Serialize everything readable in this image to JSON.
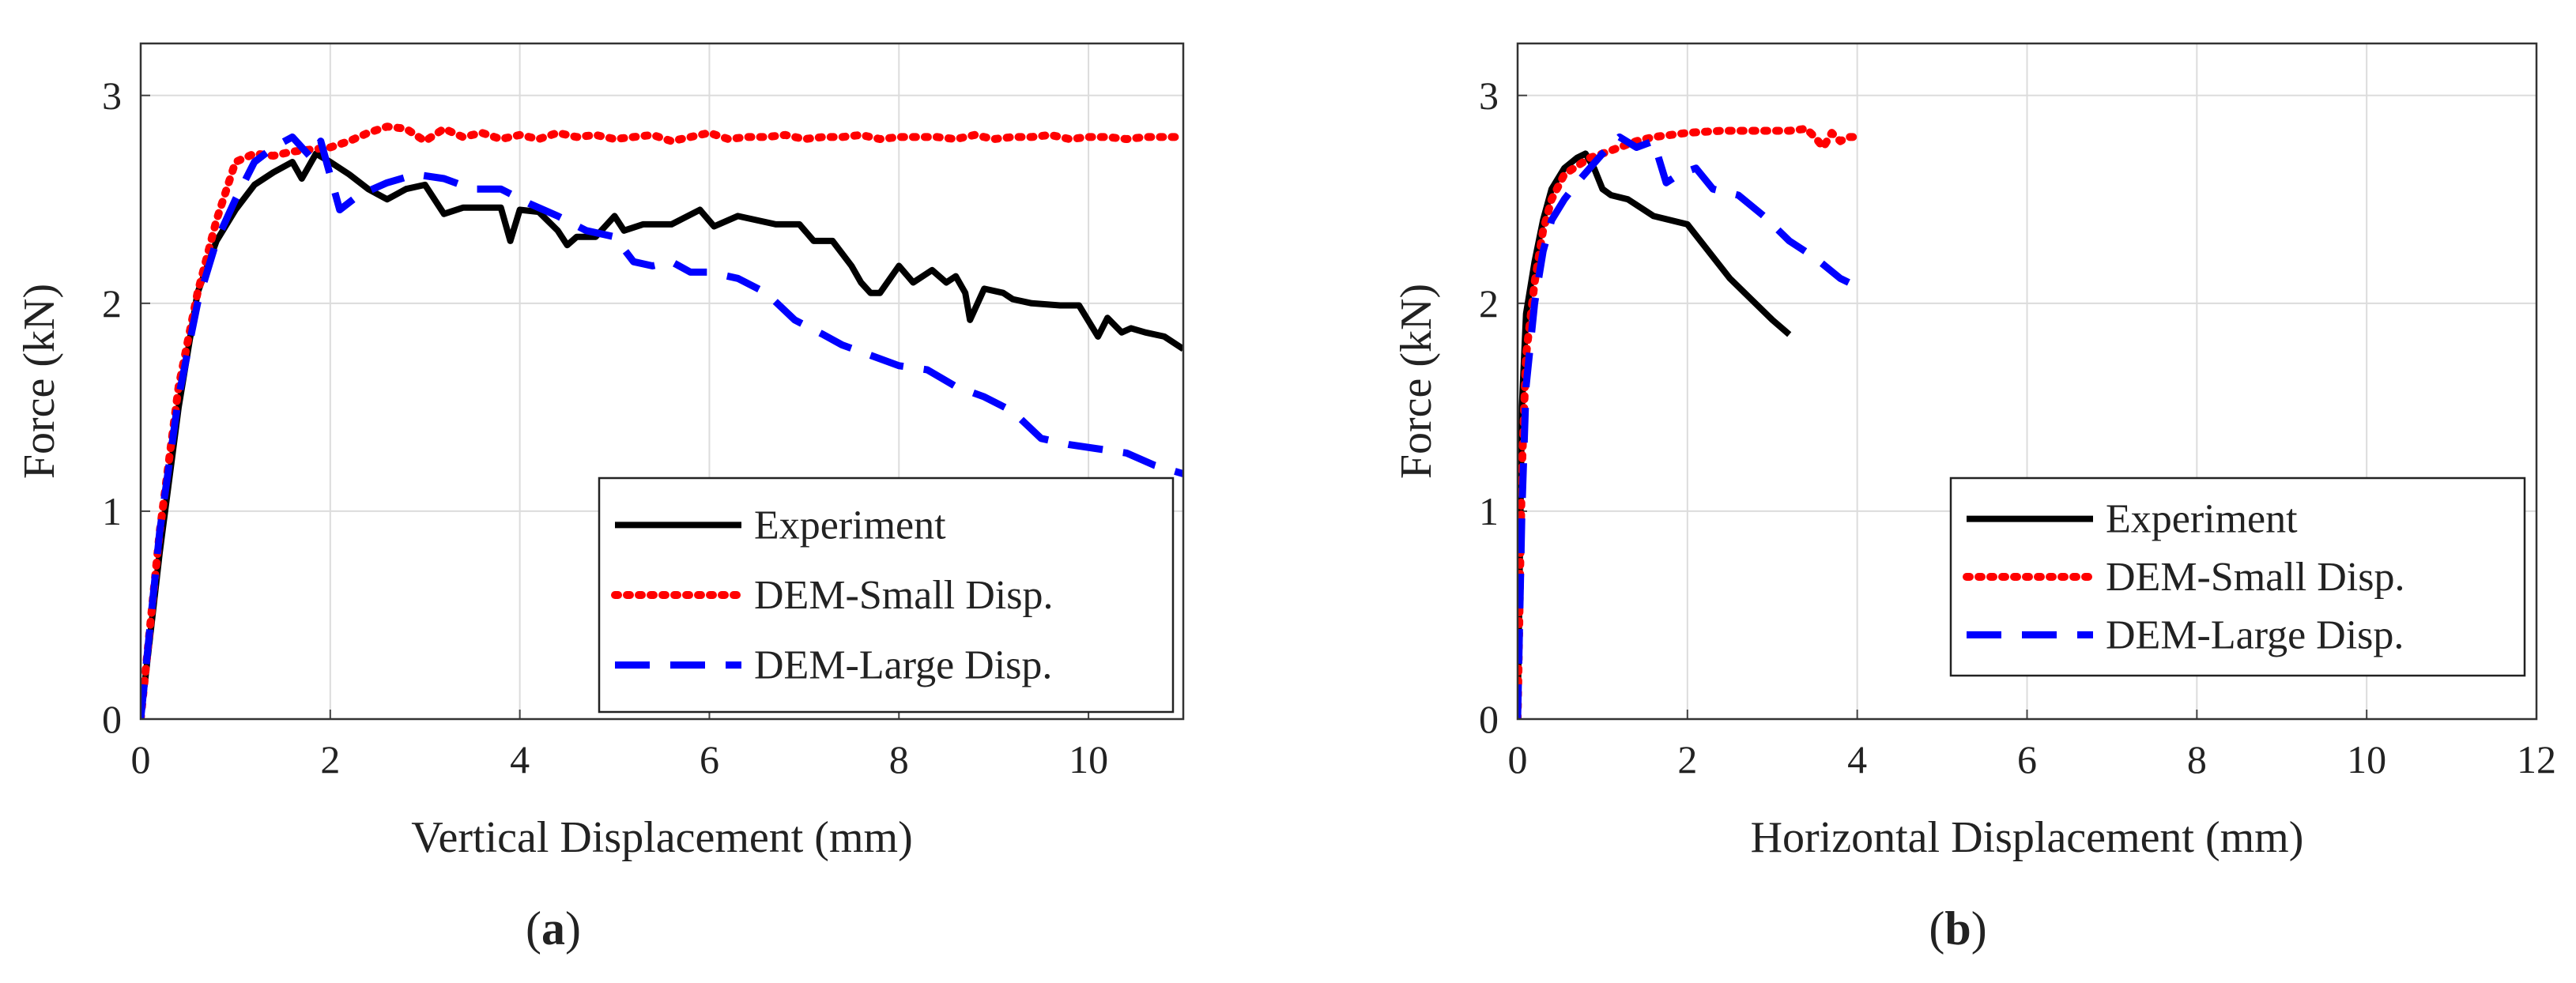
{
  "chart_data": [
    {
      "type": "line",
      "panel": "a",
      "panel_label": "a",
      "xlabel": "Vertical Displacement (mm)",
      "ylabel": "Force (kN)",
      "xlim": [
        0,
        11
      ],
      "ylim": [
        0,
        3.25
      ],
      "xticks": [
        0,
        2,
        4,
        6,
        8,
        10
      ],
      "yticks": [
        0,
        1,
        2,
        3
      ],
      "grid": true,
      "legend_position": "bottom-right",
      "series": [
        {
          "name": "Experiment",
          "color": "#000000",
          "style": "solid",
          "x": [
            0,
            0.2,
            0.4,
            0.6,
            0.8,
            1.0,
            1.2,
            1.4,
            1.6,
            1.7,
            1.85,
            2.0,
            2.2,
            2.4,
            2.6,
            2.8,
            3.0,
            3.2,
            3.4,
            3.6,
            3.8,
            3.9,
            4.0,
            4.2,
            4.4,
            4.5,
            4.6,
            4.8,
            5.0,
            5.1,
            5.3,
            5.6,
            5.9,
            6.05,
            6.3,
            6.5,
            6.7,
            6.95,
            7.1,
            7.3,
            7.5,
            7.6,
            7.7,
            7.8,
            8.0,
            8.15,
            8.35,
            8.5,
            8.6,
            8.7,
            8.75,
            8.9,
            9.1,
            9.2,
            9.4,
            9.7,
            9.9,
            10.1,
            10.2,
            10.35,
            10.45,
            10.6,
            10.8,
            11.0
          ],
          "y": [
            0,
            0.8,
            1.5,
            2.05,
            2.3,
            2.45,
            2.57,
            2.63,
            2.68,
            2.6,
            2.72,
            2.68,
            2.62,
            2.55,
            2.5,
            2.55,
            2.57,
            2.43,
            2.46,
            2.46,
            2.46,
            2.3,
            2.45,
            2.44,
            2.35,
            2.28,
            2.32,
            2.32,
            2.42,
            2.35,
            2.38,
            2.38,
            2.45,
            2.37,
            2.42,
            2.4,
            2.38,
            2.38,
            2.3,
            2.3,
            2.18,
            2.1,
            2.05,
            2.05,
            2.18,
            2.1,
            2.16,
            2.1,
            2.13,
            2.05,
            1.92,
            2.07,
            2.05,
            2.02,
            2.0,
            1.99,
            1.99,
            1.84,
            1.93,
            1.86,
            1.88,
            1.86,
            1.84,
            1.78
          ]
        },
        {
          "name": "DEM-Small Disp.",
          "color": "#ff0000",
          "style": "dotted",
          "x": [
            0,
            0.2,
            0.4,
            0.6,
            0.8,
            1.0,
            1.2,
            1.4,
            1.6,
            1.8,
            2.0,
            2.2,
            2.4,
            2.6,
            2.8,
            3.0,
            3.2,
            3.4,
            3.6,
            3.8,
            4.0,
            4.2,
            4.4,
            4.6,
            4.8,
            5.0,
            5.2,
            5.4,
            5.6,
            5.8,
            6.0,
            6.2,
            6.4,
            6.6,
            6.8,
            7.0,
            7.2,
            7.4,
            7.6,
            7.8,
            8.0,
            8.2,
            8.4,
            8.6,
            8.8,
            9.0,
            9.2,
            9.4,
            9.6,
            9.8,
            10.0,
            10.2,
            10.4,
            10.6,
            10.8,
            11.0
          ],
          "y": [
            0,
            0.9,
            1.6,
            2.05,
            2.4,
            2.68,
            2.72,
            2.71,
            2.73,
            2.74,
            2.75,
            2.78,
            2.82,
            2.85,
            2.84,
            2.78,
            2.84,
            2.8,
            2.82,
            2.79,
            2.81,
            2.79,
            2.82,
            2.8,
            2.81,
            2.79,
            2.8,
            2.81,
            2.78,
            2.8,
            2.82,
            2.79,
            2.8,
            2.8,
            2.81,
            2.79,
            2.8,
            2.8,
            2.81,
            2.79,
            2.8,
            2.8,
            2.8,
            2.79,
            2.81,
            2.79,
            2.8,
            2.8,
            2.81,
            2.79,
            2.8,
            2.8,
            2.79,
            2.8,
            2.8,
            2.8
          ]
        },
        {
          "name": "DEM-Large Disp.",
          "color": "#0000ff",
          "style": "dashed",
          "x": [
            0,
            0.2,
            0.4,
            0.6,
            0.8,
            1.0,
            1.2,
            1.4,
            1.6,
            1.8,
            1.9,
            2.1,
            2.3,
            2.6,
            2.9,
            3.2,
            3.5,
            3.8,
            4.1,
            4.4,
            4.7,
            5.0,
            5.2,
            5.4,
            5.6,
            5.8,
            6.0,
            6.3,
            6.6,
            6.9,
            7.2,
            7.4,
            7.7,
            8.0,
            8.3,
            8.6,
            8.9,
            9.2,
            9.5,
            9.8,
            10.1,
            10.4,
            10.7,
            11.0
          ],
          "y": [
            0,
            0.9,
            1.55,
            2.0,
            2.3,
            2.5,
            2.68,
            2.75,
            2.8,
            2.7,
            2.78,
            2.45,
            2.52,
            2.58,
            2.62,
            2.6,
            2.55,
            2.55,
            2.48,
            2.42,
            2.35,
            2.32,
            2.2,
            2.18,
            2.2,
            2.15,
            2.15,
            2.12,
            2.05,
            1.92,
            1.85,
            1.8,
            1.75,
            1.7,
            1.68,
            1.6,
            1.55,
            1.48,
            1.35,
            1.32,
            1.3,
            1.28,
            1.22,
            1.18
          ]
        }
      ]
    },
    {
      "type": "line",
      "panel": "b",
      "panel_label": "b",
      "xlabel": "Horizontal Displacement (mm)",
      "ylabel": "Force (kN)",
      "xlim": [
        0,
        12
      ],
      "ylim": [
        0,
        3.25
      ],
      "xticks": [
        0,
        2,
        4,
        6,
        8,
        10,
        12
      ],
      "yticks": [
        0,
        1,
        2,
        3
      ],
      "grid": true,
      "legend_position": "bottom-right",
      "series": [
        {
          "name": "Experiment",
          "color": "#000000",
          "style": "solid",
          "x": [
            0,
            0.05,
            0.1,
            0.2,
            0.3,
            0.4,
            0.55,
            0.7,
            0.8,
            0.9,
            1.0,
            1.1,
            1.3,
            1.6,
            2.0,
            2.5,
            3.0,
            3.2
          ],
          "y": [
            0,
            1.5,
            1.95,
            2.2,
            2.4,
            2.55,
            2.65,
            2.7,
            2.72,
            2.65,
            2.55,
            2.52,
            2.5,
            2.42,
            2.38,
            2.12,
            1.92,
            1.85
          ],
          "end_x": 3.2
        },
        {
          "name": "DEM-Small Disp.",
          "color": "#ff0000",
          "style": "dotted",
          "x": [
            0,
            0.05,
            0.1,
            0.2,
            0.3,
            0.4,
            0.55,
            0.7,
            0.85,
            1.0,
            1.2,
            1.4,
            1.6,
            1.8,
            2.0,
            2.4,
            2.8,
            3.2,
            3.4,
            3.5,
            3.6,
            3.7,
            3.8,
            3.9,
            4.0
          ],
          "y": [
            0,
            1.2,
            1.75,
            2.1,
            2.35,
            2.5,
            2.62,
            2.66,
            2.7,
            2.72,
            2.75,
            2.78,
            2.8,
            2.81,
            2.82,
            2.83,
            2.83,
            2.83,
            2.84,
            2.8,
            2.75,
            2.82,
            2.78,
            2.8,
            2.8
          ]
        },
        {
          "name": "DEM-Large Disp.",
          "color": "#0000ff",
          "style": "dashed",
          "x": [
            0,
            0.05,
            0.1,
            0.2,
            0.3,
            0.4,
            0.55,
            0.7,
            0.85,
            1.0,
            1.2,
            1.4,
            1.6,
            1.75,
            1.9,
            2.1,
            2.3,
            2.6,
            2.9,
            3.2,
            3.5,
            3.8,
            3.9
          ],
          "y": [
            0,
            1.0,
            1.6,
            2.0,
            2.25,
            2.4,
            2.5,
            2.58,
            2.65,
            2.72,
            2.8,
            2.75,
            2.78,
            2.58,
            2.62,
            2.65,
            2.55,
            2.52,
            2.42,
            2.3,
            2.22,
            2.12,
            2.1
          ]
        }
      ]
    }
  ]
}
